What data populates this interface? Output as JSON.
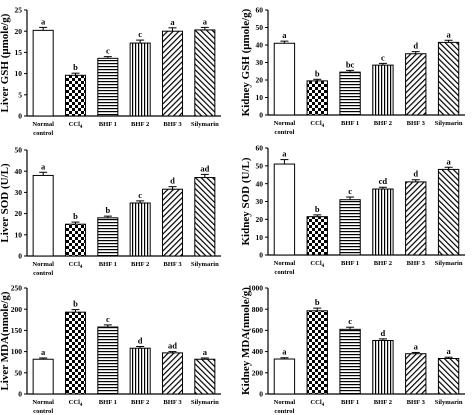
{
  "figure": {
    "categories": [
      [
        "Normal",
        "control"
      ],
      [
        "CCl",
        ""
      ],
      [
        "BHF 1"
      ],
      [
        "BHF 2"
      ],
      [
        "BHF 3"
      ],
      [
        "Silymarin"
      ]
    ],
    "ccl_subscript": "4",
    "bar_patterns": [
      "solid-white",
      "checker",
      "horizontal-lines",
      "vertical-lines",
      "diagonal-lines",
      "diagonal-lines-reverse"
    ]
  },
  "chart_data": [
    {
      "type": "bar",
      "ylabel": "Liver GSH (μmole/g)",
      "categories": [
        "Normal control",
        "CCl4",
        "BHF 1",
        "BHF 2",
        "BHF 3",
        "Silymarin"
      ],
      "values": [
        20.2,
        9.6,
        13.6,
        17.2,
        20.0,
        20.3
      ],
      "errors": [
        0.7,
        0.5,
        0.4,
        0.7,
        0.8,
        0.6
      ],
      "significance": [
        "a",
        "b",
        "c",
        "c",
        "a",
        "a"
      ],
      "ylim": [
        0,
        25
      ],
      "yticks": [
        0,
        5,
        10,
        15,
        20,
        25
      ]
    },
    {
      "type": "bar",
      "ylabel": "Kidney GSH (μmole/g)",
      "categories": [
        "Normal control",
        "CCl4",
        "BHF 1",
        "BHF 2",
        "BHF 3",
        "Silymarin"
      ],
      "values": [
        41,
        19.5,
        24.5,
        28.5,
        35,
        41.5
      ],
      "errors": [
        1.2,
        0.9,
        1.0,
        1.0,
        1.2,
        1.2
      ],
      "significance": [
        "a",
        "b",
        "bc",
        "c",
        "d",
        "a"
      ],
      "ylim": [
        0,
        60
      ],
      "yticks": [
        0,
        10,
        20,
        30,
        40,
        50,
        60
      ]
    },
    {
      "type": "bar",
      "ylabel": "Liver SOD (U/L)",
      "categories": [
        "Normal control",
        "CCl4",
        "BHF 1",
        "BHF 2",
        "BHF 3",
        "Silymarin"
      ],
      "values": [
        38,
        15,
        18,
        25,
        31.5,
        37
      ],
      "errors": [
        1.5,
        1.0,
        0.8,
        1.0,
        1.2,
        1.5
      ],
      "significance": [
        "a",
        "b",
        "b",
        "c",
        "d",
        "ad"
      ],
      "ylim": [
        0,
        50
      ],
      "yticks": [
        0,
        10,
        20,
        30,
        40,
        50
      ]
    },
    {
      "type": "bar",
      "ylabel": "Kidney SOD (U/L)",
      "categories": [
        "Normal control",
        "CCl4",
        "BHF 1",
        "BHF 2",
        "BHF 3",
        "Silymarin"
      ],
      "values": [
        51,
        21.5,
        31,
        37,
        41,
        48
      ],
      "errors": [
        2.5,
        1.0,
        1.5,
        1.0,
        1.2,
        1.2
      ],
      "significance": [
        "a",
        "b",
        "c",
        "cd",
        "d",
        "a"
      ],
      "ylim": [
        0,
        60
      ],
      "yticks": [
        0,
        10,
        20,
        30,
        40,
        50,
        60
      ]
    },
    {
      "type": "bar",
      "ylabel": "Liver MDA(nmole/g)",
      "categories": [
        "Normal control",
        "CCl4",
        "BHF 1",
        "BHF 2",
        "BHF 3",
        "Silymarin"
      ],
      "values": [
        82,
        193,
        158,
        108,
        97,
        82
      ],
      "errors": [
        3,
        6,
        5,
        4,
        3,
        3
      ],
      "significance": [
        "a",
        "b",
        "c",
        "d",
        "ad",
        "a"
      ],
      "ylim": [
        0,
        250
      ],
      "yticks": [
        0,
        50,
        100,
        150,
        200,
        250
      ]
    },
    {
      "type": "bar",
      "ylabel": "Kidney MDA(nmole/g)",
      "categories": [
        "Normal control",
        "CCl4",
        "BHF 1",
        "BHF 2",
        "BHF 3",
        "Silymarin"
      ],
      "values": [
        330,
        785,
        610,
        505,
        380,
        335
      ],
      "errors": [
        12,
        25,
        20,
        15,
        12,
        12
      ],
      "significance": [
        "a",
        "b",
        "c",
        "d",
        "a",
        "a"
      ],
      "ylim": [
        0,
        1000
      ],
      "yticks": [
        0,
        200,
        400,
        600,
        800,
        1000
      ]
    }
  ]
}
